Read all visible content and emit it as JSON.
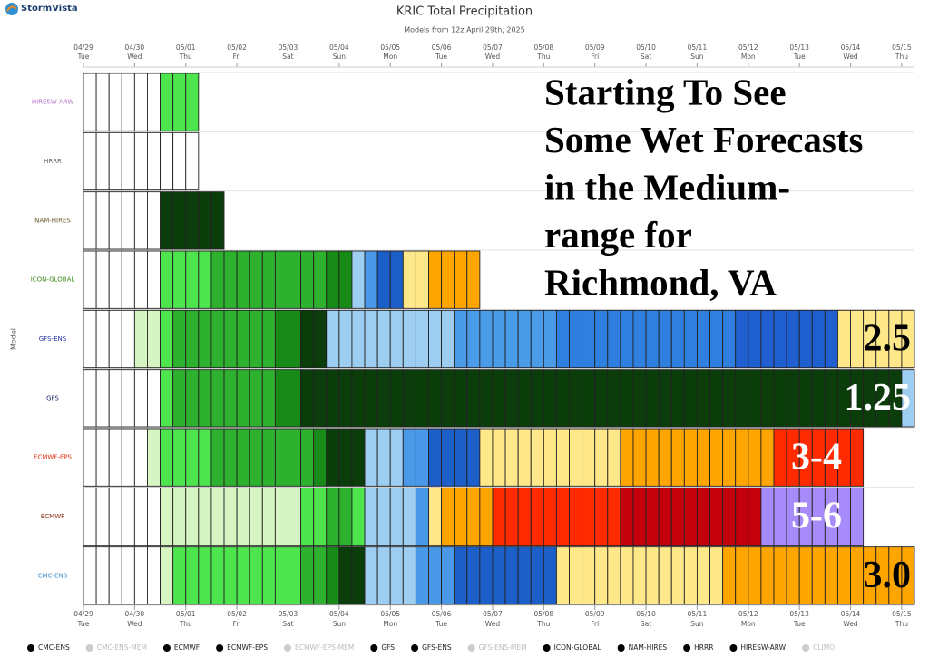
{
  "chart_data": {
    "type": "timeline",
    "brand": "StormVista",
    "title": "KRIC Total Precipitation",
    "subtitle": "Models from 12z April 29th, 2025",
    "y_label": "Model",
    "xlim": [
      0,
      390
    ],
    "xticks": [
      {
        "value": 0,
        "label": "04/29"
      },
      {
        "value": 24,
        "label": "04/30"
      },
      {
        "value": 48,
        "label": "05/01"
      },
      {
        "value": 72,
        "label": "05/02"
      },
      {
        "value": 96,
        "label": "05/03"
      },
      {
        "value": 120,
        "label": "05/04"
      },
      {
        "value": 144,
        "label": "05/05"
      },
      {
        "value": 168,
        "label": "05/06"
      },
      {
        "value": 192,
        "label": "05/07"
      },
      {
        "value": 216,
        "label": "05/08"
      },
      {
        "value": 240,
        "label": "05/09"
      },
      {
        "value": 264,
        "label": "05/10"
      },
      {
        "value": 288,
        "label": "05/11"
      },
      {
        "value": 312,
        "label": "05/12"
      },
      {
        "value": 336,
        "label": "05/13"
      },
      {
        "value": 360,
        "label": "05/14"
      },
      {
        "value": 384,
        "label": "05/15"
      }
    ],
    "xtick_days": [
      "Tue",
      "Wed",
      "Thu",
      "Fri",
      "Sat",
      "Sun",
      "Mon",
      "Tue",
      "Wed",
      "Thu",
      "Fri",
      "Sat",
      "Sun",
      "Mon",
      "Tue",
      "Wed",
      "Thu"
    ],
    "step_hours": 6,
    "series": [
      {
        "name": "HIRESW-ARW",
        "color": "#b56fc8",
        "runs": [
          [
            "#ffffff",
            6
          ],
          [
            "#4ee44e",
            3
          ]
        ]
      },
      {
        "name": "HRRR",
        "color": "#666666",
        "runs": [
          [
            "#ffffff",
            9
          ]
        ]
      },
      {
        "name": "NAM-HIRES",
        "color": "#6b5a2a",
        "runs": [
          [
            "#ffffff",
            6
          ],
          [
            "#0b3d0b",
            5
          ]
        ]
      },
      {
        "name": "ICON-GLOBAL",
        "color": "#3a8a1a",
        "runs": [
          [
            "#ffffff",
            6
          ],
          [
            "#4ee44e",
            4
          ],
          [
            "#2eb12e",
            9
          ],
          [
            "#178a17",
            2
          ],
          [
            "#9ecdf2",
            1
          ],
          [
            "#4a98e8",
            1
          ],
          [
            "#1d5fc8",
            2
          ],
          [
            "#ffe88a",
            2
          ],
          [
            "#ffa500",
            4
          ]
        ]
      },
      {
        "name": "GFS-ENS",
        "color": "#2433a8",
        "runs": [
          [
            "#ffffff",
            4
          ],
          [
            "#d6f5c2",
            2
          ],
          [
            "#4ee44e",
            1
          ],
          [
            "#2eb12e",
            8
          ],
          [
            "#178a17",
            2
          ],
          [
            "#0b3d0b",
            2
          ],
          [
            "#9ecdf2",
            10
          ],
          [
            "#4a9be8",
            8
          ],
          [
            "#2f7fe0",
            14
          ],
          [
            "#1f5fd0",
            8
          ],
          [
            "#ffe88a",
            6
          ]
        ]
      },
      {
        "name": "GFS",
        "color": "#1a2a6a",
        "runs": [
          [
            "#ffffff",
            6
          ],
          [
            "#4ee44e",
            1
          ],
          [
            "#2eb12e",
            8
          ],
          [
            "#178a17",
            2
          ],
          [
            "#0b3d0b",
            47
          ],
          [
            "#9ecdf2",
            1
          ]
        ]
      },
      {
        "name": "ECMWF-EPS",
        "color": "#e03010",
        "runs": [
          [
            "#ffffff",
            5
          ],
          [
            "#d6f5c2",
            1
          ],
          [
            "#4ee44e",
            4
          ],
          [
            "#2eb12e",
            8
          ],
          [
            "#178a17",
            1
          ],
          [
            "#0b3d0b",
            3
          ],
          [
            "#9ecdf2",
            3
          ],
          [
            "#4a98e8",
            2
          ],
          [
            "#1d5fc8",
            4
          ],
          [
            "#ffe88a",
            11
          ],
          [
            "#ffa500",
            12
          ],
          [
            "#ff2a00",
            7
          ]
        ]
      },
      {
        "name": "ECMWF",
        "color": "#8a2a10",
        "runs": [
          [
            "#ffffff",
            6
          ],
          [
            "#d6f5c2",
            11
          ],
          [
            "#4ee44e",
            2
          ],
          [
            "#2eb12e",
            2
          ],
          [
            "#4ee44e",
            1
          ],
          [
            "#9ecdf2",
            4
          ],
          [
            "#4a98e8",
            1
          ],
          [
            "#ffe88a",
            1
          ],
          [
            "#ffa500",
            4
          ],
          [
            "#ff2a00",
            10
          ],
          [
            "#c4000c",
            11
          ],
          [
            "#a78bfa",
            8
          ]
        ]
      },
      {
        "name": "CMC-ENS",
        "color": "#3a8ac8",
        "runs": [
          [
            "#ffffff",
            6
          ],
          [
            "#d6f5c2",
            1
          ],
          [
            "#4ee44e",
            10
          ],
          [
            "#2eb12e",
            2
          ],
          [
            "#178a17",
            1
          ],
          [
            "#0b3d0b",
            2
          ],
          [
            "#9ecdf2",
            4
          ],
          [
            "#4a98e8",
            3
          ],
          [
            "#1d5fc8",
            8
          ],
          [
            "#ffe88a",
            13
          ],
          [
            "#ffa500",
            15
          ]
        ]
      }
    ],
    "annotation": [
      "Starting To See",
      "Some Wet Forecasts",
      "in the Medium-",
      "range for",
      "Richmond, VA"
    ],
    "row_labels": [
      {
        "row": 4,
        "text": "2.5",
        "color": "#000000"
      },
      {
        "row": 5,
        "text": "1.25",
        "color": "#ffffff"
      },
      {
        "row": 6,
        "text": "3-4",
        "color": "#ffffff"
      },
      {
        "row": 7,
        "text": "5-6",
        "color": "#ffffff"
      },
      {
        "row": 8,
        "text": "3.0",
        "color": "#000000"
      }
    ],
    "legend": [
      {
        "name": "CMC-ENS",
        "color": "#000000"
      },
      {
        "name": "CMC-ENS-MEM",
        "color": "#cccccc"
      },
      {
        "name": "ECMWF",
        "color": "#000000"
      },
      {
        "name": "ECMWF-EPS",
        "color": "#000000"
      },
      {
        "name": "ECMWF-EPS-MEM",
        "color": "#cccccc"
      },
      {
        "name": "GFS",
        "color": "#000000"
      },
      {
        "name": "GFS-ENS",
        "color": "#000000"
      },
      {
        "name": "GFS-ENS-MEM",
        "color": "#cccccc"
      },
      {
        "name": "ICON-GLOBAL",
        "color": "#000000"
      },
      {
        "name": "NAM-HIRES",
        "color": "#000000"
      },
      {
        "name": "HRRR",
        "color": "#000000"
      },
      {
        "name": "HIRESW-ARW",
        "color": "#000000"
      },
      {
        "name": "CLIMO",
        "color": "#cccccc"
      }
    ]
  }
}
